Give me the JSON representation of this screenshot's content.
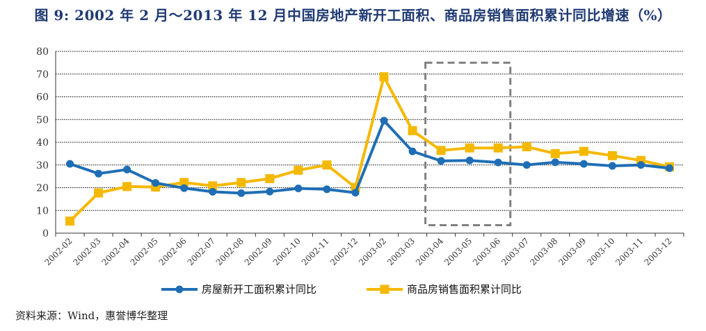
{
  "title": "图 9: 2002 年 2 月～2013 年 12 月中国房地产新开工面积、商品房销售面积累计同比增速（%）",
  "source": "资料来源：Wind，惠誉博华整理",
  "chart_data": {
    "type": "line",
    "title": "图 9: 2002 年 2 月～2013 年 12 月中国房地产新开工面积、商品房销售面积累计同比增速（%）",
    "categories": [
      "2002-02",
      "2002-03",
      "2002-04",
      "2002-05",
      "2002-06",
      "2002-07",
      "2002-08",
      "2002-09",
      "2002-10",
      "2002-11",
      "2002-12",
      "2003-02",
      "2003-03",
      "2003-04",
      "2003-05",
      "2003-06",
      "2003-07",
      "2003-08",
      "2003-09",
      "2003-10",
      "2003-11",
      "2003-12"
    ],
    "ylim": [
      0,
      80
    ],
    "yticks": [
      0,
      10,
      20,
      30,
      40,
      50,
      60,
      70,
      80
    ],
    "grid": true,
    "legend_position": "bottom",
    "series": [
      {
        "name": "房屋新开工面积累计同比",
        "color": "#1f6eb5",
        "marker": "circle",
        "values": [
          30.5,
          26.2,
          28.0,
          22.1,
          19.8,
          18.2,
          17.6,
          18.3,
          19.7,
          19.3,
          17.8,
          49.5,
          36.0,
          31.8,
          32.0,
          31.1,
          30.0,
          31.2,
          30.5,
          29.6,
          30.0,
          28.6
        ]
      },
      {
        "name": "商品房销售面积累计同比",
        "color": "#f5b800",
        "marker": "square",
        "values": [
          5.3,
          17.7,
          20.5,
          20.3,
          22.3,
          20.8,
          22.3,
          24.0,
          27.7,
          30.0,
          20.1,
          68.8,
          45.1,
          36.4,
          37.5,
          37.5,
          38.0,
          35.0,
          36.0,
          34.1,
          32.0,
          29.2
        ]
      }
    ],
    "annotation": {
      "type": "dashed-box",
      "from_category": "2003-04",
      "to_category": "2003-06",
      "y_range": [
        3.5,
        75
      ]
    }
  }
}
